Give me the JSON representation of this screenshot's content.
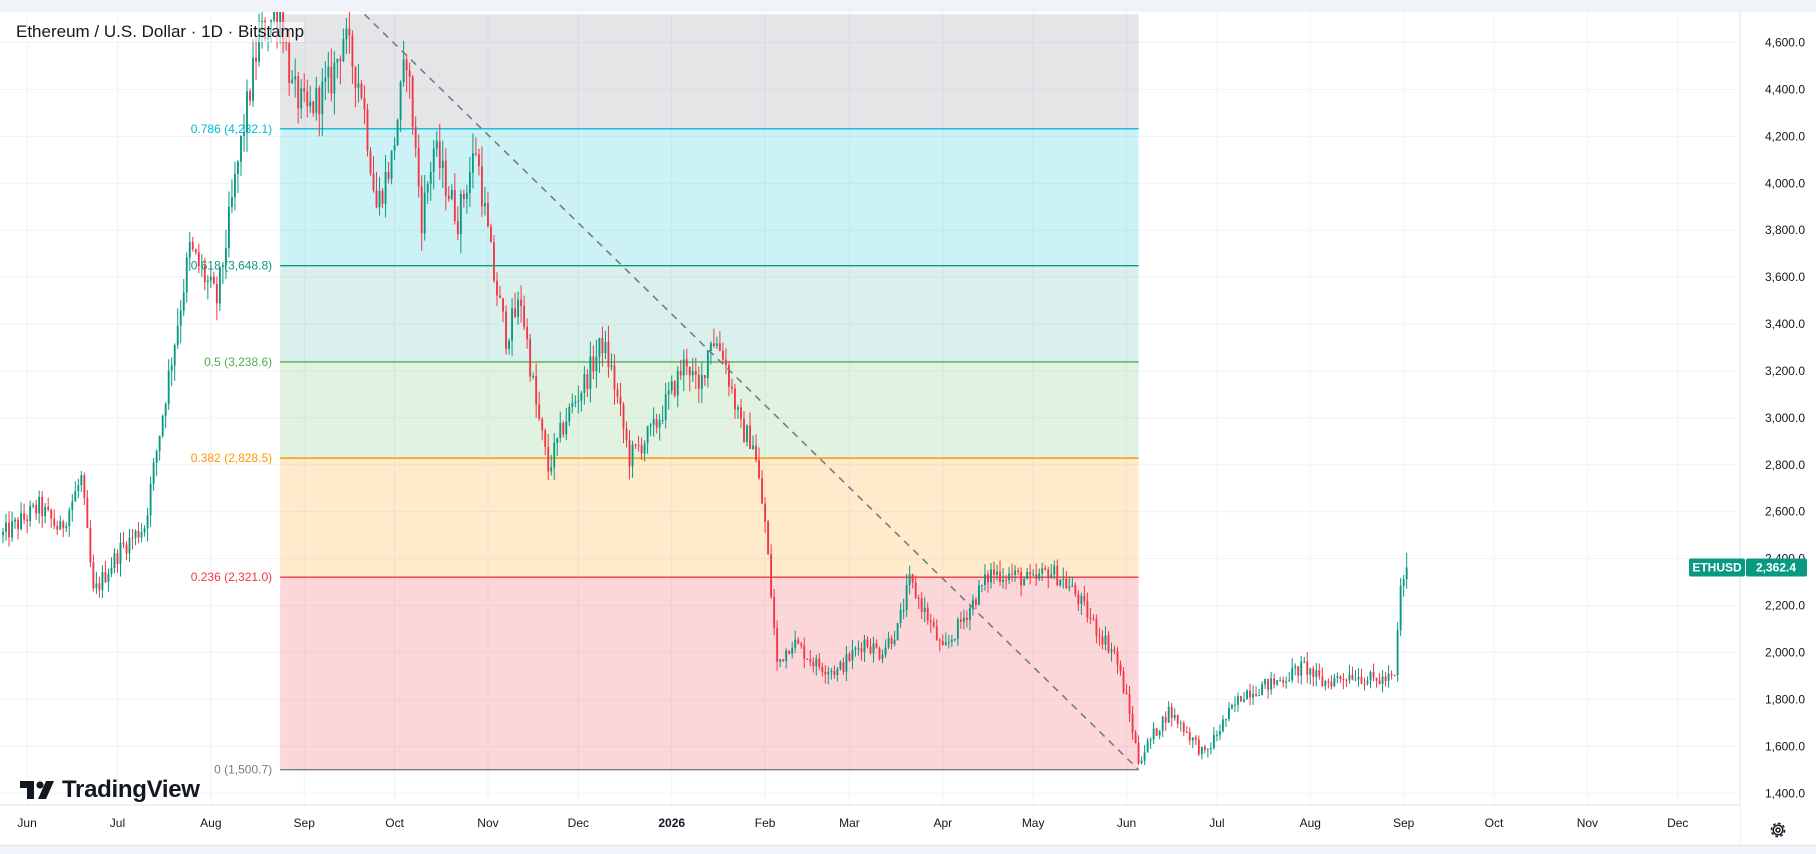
{
  "header": {
    "title": "Ethereum / U.S. Dollar · 1D · Bitstamp"
  },
  "brand": {
    "name": "TradingView"
  },
  "chart_data": {
    "type": "candlestick",
    "symbol": "ETHUSD",
    "last_price_label": "2,362.4",
    "last_price": 2362.4,
    "y_axis": {
      "range": [
        1350,
        4730
      ],
      "ticks": [
        {
          "value": 1400,
          "label": "1,400.0"
        },
        {
          "value": 1600,
          "label": "1,600.0"
        },
        {
          "value": 1800,
          "label": "1,800.0"
        },
        {
          "value": 2000,
          "label": "2,000.0"
        },
        {
          "value": 2200,
          "label": "2,200.0"
        },
        {
          "value": 2400,
          "label": "2,400.0"
        },
        {
          "value": 2600,
          "label": "2,600.0"
        },
        {
          "value": 2800,
          "label": "2,800.0"
        },
        {
          "value": 3000,
          "label": "3,000.0"
        },
        {
          "value": 3200,
          "label": "3,200.0"
        },
        {
          "value": 3400,
          "label": "3,400.0"
        },
        {
          "value": 3600,
          "label": "3,600.0"
        },
        {
          "value": 3800,
          "label": "3,800.0"
        },
        {
          "value": 4000,
          "label": "4,000.0"
        },
        {
          "value": 4200,
          "label": "4,200.0"
        },
        {
          "value": 4400,
          "label": "4,400.0"
        },
        {
          "value": 4600,
          "label": "4,600.0"
        }
      ]
    },
    "x_axis": {
      "range": [
        "2025-05-23",
        "2026-12-21"
      ],
      "ticks": [
        {
          "date": "2025-06-01",
          "label": "Jun"
        },
        {
          "date": "2025-07-01",
          "label": "Jul"
        },
        {
          "date": "2025-08-01",
          "label": "Aug"
        },
        {
          "date": "2025-09-01",
          "label": "Sep"
        },
        {
          "date": "2025-10-01",
          "label": "Oct"
        },
        {
          "date": "2025-11-01",
          "label": "Nov"
        },
        {
          "date": "2025-12-01",
          "label": "Dec"
        },
        {
          "date": "2026-01-01",
          "label": "2026"
        },
        {
          "date": "2026-02-01",
          "label": "Feb"
        },
        {
          "date": "2026-03-01",
          "label": "Mar"
        },
        {
          "date": "2026-04-01",
          "label": "Apr"
        },
        {
          "date": "2026-05-01",
          "label": "May"
        },
        {
          "date": "2026-06-01",
          "label": "Jun"
        },
        {
          "date": "2026-07-01",
          "label": "Jul"
        },
        {
          "date": "2026-08-01",
          "label": "Aug"
        },
        {
          "date": "2026-09-01",
          "label": "Sep"
        },
        {
          "date": "2026-10-01",
          "label": "Oct"
        },
        {
          "date": "2026-11-01",
          "label": "Nov"
        },
        {
          "date": "2026-12-01",
          "label": "Dec"
        }
      ]
    },
    "grid": true,
    "price_path": [
      [
        "2025-05-24",
        2500
      ],
      [
        "2025-06-05",
        2620
      ],
      [
        "2025-06-12",
        2520
      ],
      [
        "2025-06-19",
        2740
      ],
      [
        "2025-06-23",
        2250
      ],
      [
        "2025-07-02",
        2440
      ],
      [
        "2025-07-10",
        2540
      ],
      [
        "2025-07-17",
        3100
      ],
      [
        "2025-07-25",
        3720
      ],
      [
        "2025-08-03",
        3500
      ],
      [
        "2025-08-12",
        4250
      ],
      [
        "2025-08-17",
        4620
      ],
      [
        "2025-08-24",
        4750
      ],
      [
        "2025-08-28",
        4400
      ],
      [
        "2025-09-02",
        4300
      ],
      [
        "2025-09-10",
        4440
      ],
      [
        "2025-09-14",
        4630
      ],
      [
        "2025-09-20",
        4400
      ],
      [
        "2025-09-25",
        3900
      ],
      [
        "2025-09-30",
        4100
      ],
      [
        "2025-10-05",
        4550
      ],
      [
        "2025-10-10",
        3850
      ],
      [
        "2025-10-14",
        4150
      ],
      [
        "2025-10-22",
        3850
      ],
      [
        "2025-10-28",
        4150
      ],
      [
        "2025-11-03",
        3600
      ],
      [
        "2025-11-07",
        3350
      ],
      [
        "2025-11-12",
        3500
      ],
      [
        "2025-11-17",
        3050
      ],
      [
        "2025-11-21",
        2780
      ],
      [
        "2025-11-27",
        3000
      ],
      [
        "2025-12-03",
        3150
      ],
      [
        "2025-12-09",
        3320
      ],
      [
        "2025-12-12",
        3200
      ],
      [
        "2025-12-18",
        2830
      ],
      [
        "2025-12-26",
        2950
      ],
      [
        "2026-01-06",
        3250
      ],
      [
        "2026-01-10",
        3100
      ],
      [
        "2026-01-14",
        3350
      ],
      [
        "2026-01-18",
        3280
      ],
      [
        "2026-01-24",
        2950
      ],
      [
        "2026-01-28",
        2900
      ],
      [
        "2026-02-01",
        2550
      ],
      [
        "2026-02-05",
        1950
      ],
      [
        "2026-02-10",
        2050
      ],
      [
        "2026-02-18",
        1950
      ],
      [
        "2026-02-25",
        1920
      ],
      [
        "2026-03-06",
        2050
      ],
      [
        "2026-03-11",
        2000
      ],
      [
        "2026-03-17",
        2100
      ],
      [
        "2026-03-21",
        2300
      ],
      [
        "2026-03-27",
        2150
      ],
      [
        "2026-04-01",
        2000
      ],
      [
        "2026-04-08",
        2150
      ],
      [
        "2026-04-13",
        2260
      ],
      [
        "2026-04-17",
        2340
      ],
      [
        "2026-04-24",
        2330
      ],
      [
        "2026-05-01",
        2300
      ],
      [
        "2026-05-06",
        2350
      ],
      [
        "2026-05-10",
        2320
      ],
      [
        "2026-05-15",
        2250
      ],
      [
        "2026-05-22",
        2100
      ],
      [
        "2026-05-28",
        2000
      ],
      [
        "2026-06-01",
        1800
      ],
      [
        "2026-06-05",
        1540
      ],
      [
        "2026-06-10",
        1650
      ],
      [
        "2026-06-15",
        1750
      ],
      [
        "2026-06-20",
        1680
      ],
      [
        "2026-06-27",
        1560
      ],
      [
        "2026-07-03",
        1700
      ],
      [
        "2026-07-10",
        1830
      ],
      [
        "2026-07-20",
        1870
      ],
      [
        "2026-07-30",
        1940
      ],
      [
        "2026-08-05",
        1870
      ],
      [
        "2026-08-15",
        1910
      ],
      [
        "2026-08-22",
        1880
      ],
      [
        "2026-08-29",
        1890
      ],
      [
        "2026-08-31",
        2270
      ],
      [
        "2026-09-02",
        2362.4
      ]
    ],
    "trendline": {
      "start": [
        "2025-09-21",
        4720
      ],
      "end": [
        "2026-06-05",
        1500.7
      ]
    },
    "fib_window": [
      "2025-08-24",
      "2026-06-05"
    ],
    "fib_levels": [
      {
        "label": "",
        "value": 4720,
        "color": "#787b86",
        "fill": "rgba(120,123,134,0.20)"
      },
      {
        "label": "0.786 (4,232.1)",
        "value": 4232.1,
        "color": "#00bcd4",
        "fill": "rgba(0,188,212,0.20)"
      },
      {
        "label": "0.618 (3,648.8)",
        "value": 3648.8,
        "color": "#089981",
        "fill": "rgba(8,153,129,0.15)"
      },
      {
        "label": "0.5 (3,238.6)",
        "value": 3238.6,
        "color": "#4caf50",
        "fill": "rgba(76,175,80,0.17)"
      },
      {
        "label": "0.382 (2,828.5)",
        "value": 2828.5,
        "color": "#ff9800",
        "fill": "rgba(255,152,0,0.20)"
      },
      {
        "label": "0.236 (2,321.0)",
        "value": 2321.0,
        "color": "#f23645",
        "fill": "rgba(242,54,69,0.20)"
      },
      {
        "label": "0 (1,500.7)",
        "value": 1500.7,
        "color": "#787b86",
        "fill": ""
      }
    ],
    "colors": {
      "up": "#089981",
      "down": "#f23645",
      "badge": "#089981",
      "trendline": "#787b86"
    }
  }
}
